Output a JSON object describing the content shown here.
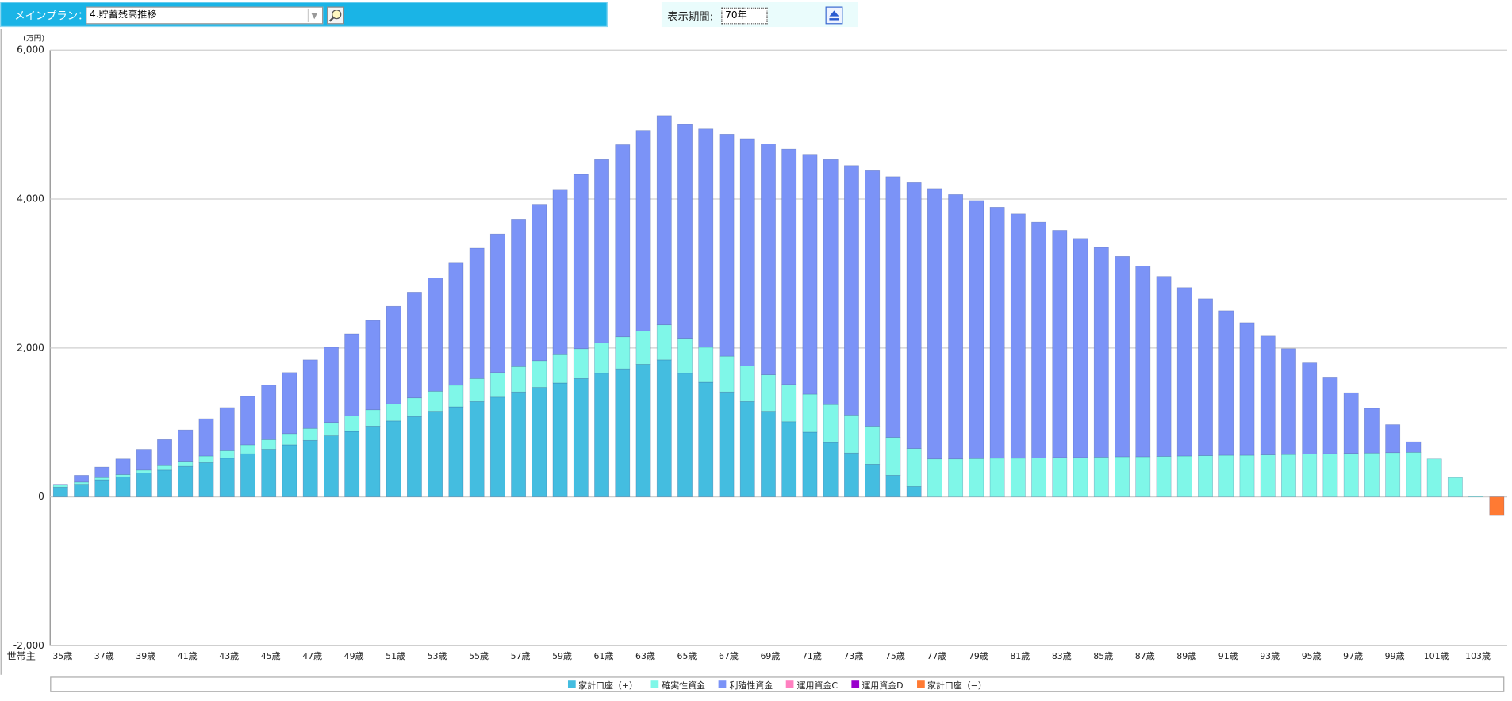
{
  "header": {
    "plan_label": "メインプラン：",
    "plan": "4.貯蓄残高推移",
    "period_label": "表示期間:",
    "period": "70年"
  },
  "chart_data": {
    "type": "stacked_bar",
    "y_unit": "(万円)",
    "x_label": "世帯主",
    "categories": [
      "35歳",
      null,
      "37歳",
      null,
      "39歳",
      null,
      "41歳",
      null,
      "43歳",
      null,
      "45歳",
      null,
      "47歳",
      null,
      "49歳",
      null,
      "51歳",
      null,
      "53歳",
      null,
      "55歳",
      null,
      "57歳",
      null,
      "59歳",
      null,
      "61歳",
      null,
      "63歳",
      null,
      "65歳",
      null,
      "67歳",
      null,
      "69歳",
      null,
      "71歳",
      null,
      "73歳",
      null,
      "75歳",
      null,
      "77歳",
      null,
      "79歳",
      null,
      "81歳",
      null,
      "83歳",
      null,
      "85歳",
      null,
      "87歳",
      null,
      "89歳",
      null,
      "91歳",
      null,
      "93歳",
      null,
      "95歳",
      null,
      "97歳",
      null,
      "99歳",
      null,
      "101歳",
      null,
      "103歳",
      null
    ],
    "ylim": [
      -2000,
      6000
    ],
    "yticks": [
      {
        "value": -2000,
        "label": "-2,000"
      },
      0,
      {
        "value": 2000,
        "label": "2,000"
      },
      {
        "value": 4000,
        "label": "4,000"
      },
      {
        "value": 6000,
        "label": "6,000"
      }
    ],
    "grid": true,
    "series": [
      {
        "name": "家計口座（+）",
        "color": "#44bde0",
        "values": [
          130,
          170,
          230,
          270,
          320,
          360,
          410,
          460,
          520,
          580,
          640,
          700,
          760,
          820,
          880,
          950,
          1020,
          1080,
          1150,
          1210,
          1280,
          1340,
          1410,
          1470,
          1530,
          1590,
          1660,
          1720,
          1780,
          1840,
          1660,
          1540,
          1410,
          1280,
          1150,
          1010,
          870,
          730,
          590,
          440,
          290,
          140,
          0,
          0,
          0,
          0,
          0,
          0,
          0,
          0,
          0,
          0,
          0,
          0,
          0,
          0,
          0,
          0,
          0,
          0,
          0,
          0,
          0,
          0,
          0,
          0,
          0,
          0,
          0,
          0
        ]
      },
      {
        "name": "確実性資金",
        "color": "#7ff7e8",
        "values": [
          30,
          30,
          30,
          30,
          40,
          60,
          70,
          90,
          100,
          120,
          130,
          150,
          160,
          180,
          210,
          220,
          230,
          250,
          270,
          290,
          310,
          330,
          340,
          360,
          380,
          400,
          410,
          430,
          450,
          470,
          470,
          470,
          480,
          480,
          490,
          500,
          510,
          510,
          510,
          510,
          510,
          510,
          510,
          510,
          515,
          520,
          520,
          525,
          530,
          530,
          535,
          540,
          540,
          545,
          550,
          555,
          560,
          560,
          565,
          570,
          575,
          580,
          585,
          590,
          595,
          600,
          510,
          260,
          10,
          0
        ]
      },
      {
        "name": "利殖性資金",
        "color": "#7b93f7",
        "values": [
          10,
          90,
          140,
          210,
          280,
          350,
          420,
          500,
          580,
          650,
          730,
          820,
          920,
          1010,
          1100,
          1200,
          1310,
          1420,
          1520,
          1640,
          1750,
          1860,
          1980,
          2100,
          2220,
          2340,
          2460,
          2580,
          2690,
          2810,
          2870,
          2930,
          2980,
          3050,
          3100,
          3160,
          3220,
          3290,
          3350,
          3430,
          3500,
          3570,
          3630,
          3550,
          3465,
          3370,
          3280,
          3165,
          3050,
          2940,
          2815,
          2690,
          2560,
          2415,
          2260,
          2105,
          1940,
          1780,
          1595,
          1420,
          1225,
          1020,
          815,
          600,
          375,
          140,
          0,
          0,
          0,
          0
        ]
      },
      {
        "name": "運用資金C",
        "color": "#ff80c0",
        "values": [
          0,
          0,
          0,
          0,
          0,
          0,
          0,
          0,
          0,
          0,
          0,
          0,
          0,
          0,
          0,
          0,
          0,
          0,
          0,
          0,
          0,
          0,
          0,
          0,
          0,
          0,
          0,
          0,
          0,
          0,
          0,
          0,
          0,
          0,
          0,
          0,
          0,
          0,
          0,
          0,
          0,
          0,
          0,
          0,
          0,
          0,
          0,
          0,
          0,
          0,
          0,
          0,
          0,
          0,
          0,
          0,
          0,
          0,
          0,
          0,
          0,
          0,
          0,
          0,
          0,
          0,
          0,
          0,
          0,
          0
        ]
      },
      {
        "name": "運用資金D",
        "color": "#9900cc",
        "values": [
          0,
          0,
          0,
          0,
          0,
          0,
          0,
          0,
          0,
          0,
          0,
          0,
          0,
          0,
          0,
          0,
          0,
          0,
          0,
          0,
          0,
          0,
          0,
          0,
          0,
          0,
          0,
          0,
          0,
          0,
          0,
          0,
          0,
          0,
          0,
          0,
          0,
          0,
          0,
          0,
          0,
          0,
          0,
          0,
          0,
          0,
          0,
          0,
          0,
          0,
          0,
          0,
          0,
          0,
          0,
          0,
          0,
          0,
          0,
          0,
          0,
          0,
          0,
          0,
          0,
          0,
          0,
          0,
          0,
          0
        ]
      },
      {
        "name": "家計口座（−）",
        "color": "#ff7a33",
        "values": [
          0,
          0,
          0,
          0,
          0,
          0,
          0,
          0,
          0,
          0,
          0,
          0,
          0,
          0,
          0,
          0,
          0,
          0,
          0,
          0,
          0,
          0,
          0,
          0,
          0,
          0,
          0,
          0,
          0,
          0,
          0,
          0,
          0,
          0,
          0,
          0,
          0,
          0,
          0,
          0,
          0,
          0,
          0,
          0,
          0,
          0,
          0,
          0,
          0,
          0,
          0,
          0,
          0,
          0,
          0,
          0,
          0,
          0,
          0,
          0,
          0,
          0,
          0,
          0,
          0,
          0,
          0,
          0,
          0,
          -250
        ]
      }
    ]
  }
}
